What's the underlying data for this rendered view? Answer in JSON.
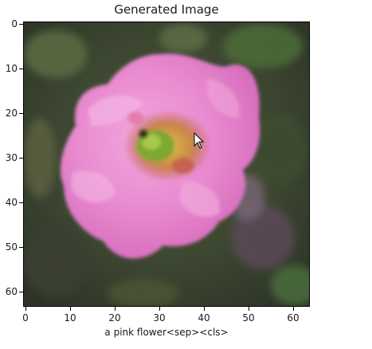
{
  "plot": {
    "title": "Generated Image",
    "xlabel": "a pink flower<sep><cls>",
    "x_ticks": [
      "0",
      "10",
      "20",
      "30",
      "40",
      "50",
      "60"
    ],
    "y_ticks": [
      "0",
      "10",
      "20",
      "30",
      "40",
      "50",
      "60"
    ],
    "image_extent": [
      -0.5,
      63.5
    ],
    "image_content": "pink-flower"
  },
  "colors": {
    "background_dark": "#3a3f2c",
    "background_green": "#4a6a36",
    "petal": "#e98bd0",
    "petal_light": "#f4b3e3",
    "center_yellow": "#d9b34a",
    "center_green": "#7da832",
    "center_red": "#c55a4a"
  },
  "cursor": {
    "icon": "mouse-pointer-icon"
  }
}
